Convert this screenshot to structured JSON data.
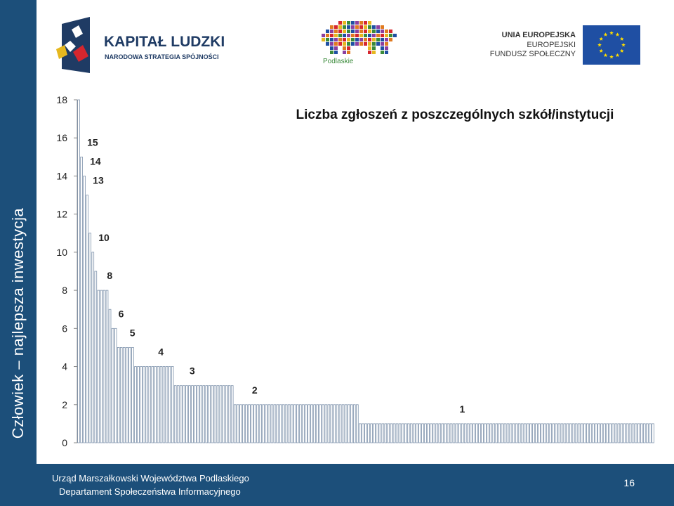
{
  "sidebar": {
    "text": "Człowiek – najlepsza inwestycja"
  },
  "logos": {
    "kapital_title": "KAPITAŁ LUDZKI",
    "kapital_sub": "NARODOWA STRATEGIA SPÓJNOŚCI",
    "podlaskie": "Podlaskie",
    "eu_line1": "UNIA EUROPEJSKA",
    "eu_line2": "EUROPEJSKI",
    "eu_line3": "FUNDUSZ SPOŁECZNY"
  },
  "footer": {
    "line1": "Urząd Marszałkowski Województwa Podlaskiego",
    "line2": "Departament Społeczeństwa Informacyjnego",
    "page": "16"
  },
  "colors": {
    "primary": "#1c4f7a",
    "bar_fill": "#ffffff",
    "bar_stroke": "#7f93ac"
  },
  "chart_data": {
    "type": "bar",
    "title": "Liczba zgłoszeń z poszczególnych szkół/instytucji",
    "ylim": [
      0,
      18
    ],
    "yticks": [
      0,
      2,
      4,
      6,
      8,
      10,
      12,
      14,
      16,
      18
    ],
    "legend": "none",
    "grid": false,
    "values": [
      18,
      15,
      14,
      13,
      11,
      10,
      9,
      8,
      8,
      8,
      8,
      7,
      6,
      6,
      5,
      5,
      5,
      5,
      5,
      5,
      4,
      4,
      4,
      4,
      4,
      4,
      4,
      4,
      4,
      4,
      4,
      4,
      4,
      4,
      3,
      3,
      3,
      3,
      3,
      3,
      3,
      3,
      3,
      3,
      3,
      3,
      3,
      3,
      3,
      3,
      3,
      3,
      3,
      3,
      3,
      2,
      2,
      2,
      2,
      2,
      2,
      2,
      2,
      2,
      2,
      2,
      2,
      2,
      2,
      2,
      2,
      2,
      2,
      2,
      2,
      2,
      2,
      2,
      2,
      2,
      2,
      2,
      2,
      2,
      2,
      2,
      2,
      2,
      2,
      2,
      2,
      2,
      2,
      2,
      2,
      2,
      2,
      2,
      2,
      1,
      1,
      1,
      1,
      1,
      1,
      1,
      1,
      1,
      1,
      1,
      1,
      1,
      1,
      1,
      1,
      1,
      1,
      1,
      1,
      1,
      1,
      1,
      1,
      1,
      1,
      1,
      1,
      1,
      1,
      1,
      1,
      1,
      1,
      1,
      1,
      1,
      1,
      1,
      1,
      1,
      1,
      1,
      1,
      1,
      1,
      1,
      1,
      1,
      1,
      1,
      1,
      1,
      1,
      1,
      1,
      1,
      1,
      1,
      1,
      1,
      1,
      1,
      1,
      1,
      1,
      1,
      1,
      1,
      1,
      1,
      1,
      1,
      1,
      1,
      1,
      1,
      1,
      1,
      1,
      1,
      1,
      1,
      1,
      1,
      1,
      1,
      1,
      1,
      1,
      1,
      1,
      1,
      1,
      1,
      1,
      1,
      1,
      1,
      1,
      1,
      1,
      1,
      1
    ],
    "annotations": [
      {
        "text": "15",
        "value": 15,
        "bar_index": 1
      },
      {
        "text": "14",
        "value": 14,
        "bar_index": 2
      },
      {
        "text": "13",
        "value": 13,
        "bar_index": 3
      },
      {
        "text": "10",
        "value": 10,
        "bar_index": 5
      },
      {
        "text": "8",
        "value": 8,
        "bar_index": 8
      },
      {
        "text": "6",
        "value": 6,
        "bar_index": 12
      },
      {
        "text": "5",
        "value": 5,
        "bar_index": 16
      },
      {
        "text": "4",
        "value": 4,
        "bar_index": 26
      },
      {
        "text": "3",
        "value": 3,
        "bar_index": 37
      },
      {
        "text": "2",
        "value": 2,
        "bar_index": 59
      },
      {
        "text": "1",
        "value": 1,
        "bar_index": 132
      }
    ]
  }
}
